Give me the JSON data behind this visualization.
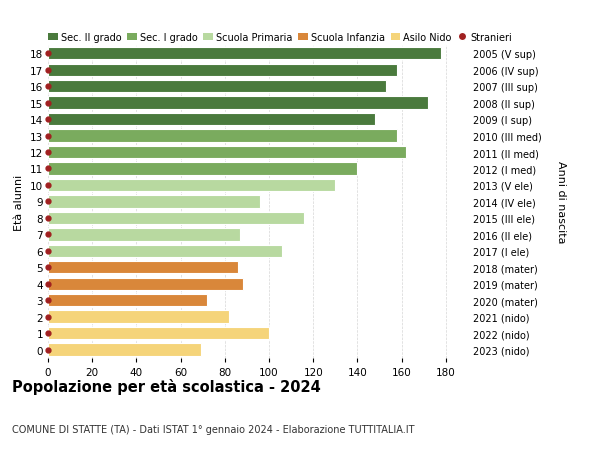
{
  "ages": [
    18,
    17,
    16,
    15,
    14,
    13,
    12,
    11,
    10,
    9,
    8,
    7,
    6,
    5,
    4,
    3,
    2,
    1,
    0
  ],
  "values": [
    178,
    158,
    153,
    172,
    148,
    158,
    162,
    140,
    130,
    96,
    116,
    87,
    106,
    86,
    88,
    72,
    82,
    100,
    69
  ],
  "right_labels": [
    "2005 (V sup)",
    "2006 (IV sup)",
    "2007 (III sup)",
    "2008 (II sup)",
    "2009 (I sup)",
    "2010 (III med)",
    "2011 (II med)",
    "2012 (I med)",
    "2013 (V ele)",
    "2014 (IV ele)",
    "2015 (III ele)",
    "2016 (II ele)",
    "2017 (I ele)",
    "2018 (mater)",
    "2019 (mater)",
    "2020 (mater)",
    "2021 (nido)",
    "2022 (nido)",
    "2023 (nido)"
  ],
  "bar_colors": [
    "#4a7a3d",
    "#4a7a3d",
    "#4a7a3d",
    "#4a7a3d",
    "#4a7a3d",
    "#7aab5e",
    "#7aab5e",
    "#7aab5e",
    "#b8d9a0",
    "#b8d9a0",
    "#b8d9a0",
    "#b8d9a0",
    "#b8d9a0",
    "#d9873a",
    "#d9873a",
    "#d9873a",
    "#f5d47a",
    "#f5d47a",
    "#f5d47a"
  ],
  "dot_color": "#a02020",
  "legend_labels": [
    "Sec. II grado",
    "Sec. I grado",
    "Scuola Primaria",
    "Scuola Infanzia",
    "Asilo Nido",
    "Stranieri"
  ],
  "legend_colors": [
    "#4a7a3d",
    "#7aab5e",
    "#b8d9a0",
    "#d9873a",
    "#f5d47a",
    "#a02020"
  ],
  "legend_markers": [
    "s",
    "s",
    "s",
    "s",
    "s",
    "o"
  ],
  "title": "Popolazione per età scolastica - 2024",
  "subtitle": "COMUNE DI STATTE (TA) - Dati ISTAT 1° gennaio 2024 - Elaborazione TUTTITALIA.IT",
  "ylabel_left": "Età alunni",
  "ylabel_right": "Anni di nascita",
  "xlim": [
    0,
    190
  ],
  "xticks": [
    0,
    20,
    40,
    60,
    80,
    100,
    120,
    140,
    160,
    180
  ],
  "background_color": "#ffffff",
  "grid_color": "#cccccc"
}
